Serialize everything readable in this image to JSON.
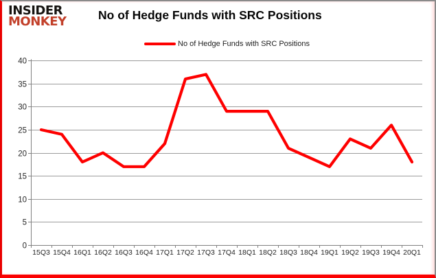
{
  "brand": {
    "line1": "INSIDER",
    "line2": "MONKEY"
  },
  "header": {
    "title": "No of Hedge Funds with SRC Positions"
  },
  "legend": {
    "label": "No of Hedge Funds with SRC Positions"
  },
  "colors": {
    "series_line": "#fe0000",
    "gridline": "#9b9b9b",
    "axis": "#808080",
    "tick_text": "#262626",
    "brand_black": "#161310",
    "brand_red": "#c2402a",
    "frame_red": "#fb0000",
    "frame_gray": "#8a8a8a"
  },
  "chart_data": {
    "type": "line",
    "title": "No of Hedge Funds with SRC Positions",
    "categories": [
      "15Q3",
      "15Q4",
      "16Q1",
      "16Q2",
      "16Q3",
      "16Q4",
      "17Q1",
      "17Q2",
      "17Q3",
      "17Q4",
      "18Q1",
      "18Q2",
      "18Q3",
      "18Q4",
      "19Q1",
      "19Q2",
      "19Q3",
      "19Q4",
      "20Q1"
    ],
    "series": [
      {
        "name": "No of Hedge Funds with SRC Positions",
        "values": [
          25,
          24,
          18,
          20,
          17,
          17,
          22,
          36,
          37,
          29,
          29,
          29,
          21,
          19,
          17,
          23,
          21,
          26,
          18
        ]
      }
    ],
    "xlabel": "",
    "ylabel": "",
    "ylim": [
      0,
      40
    ],
    "yticks": [
      0,
      5,
      10,
      15,
      20,
      25,
      30,
      35,
      40
    ],
    "grid": true,
    "legend_position": "top"
  }
}
